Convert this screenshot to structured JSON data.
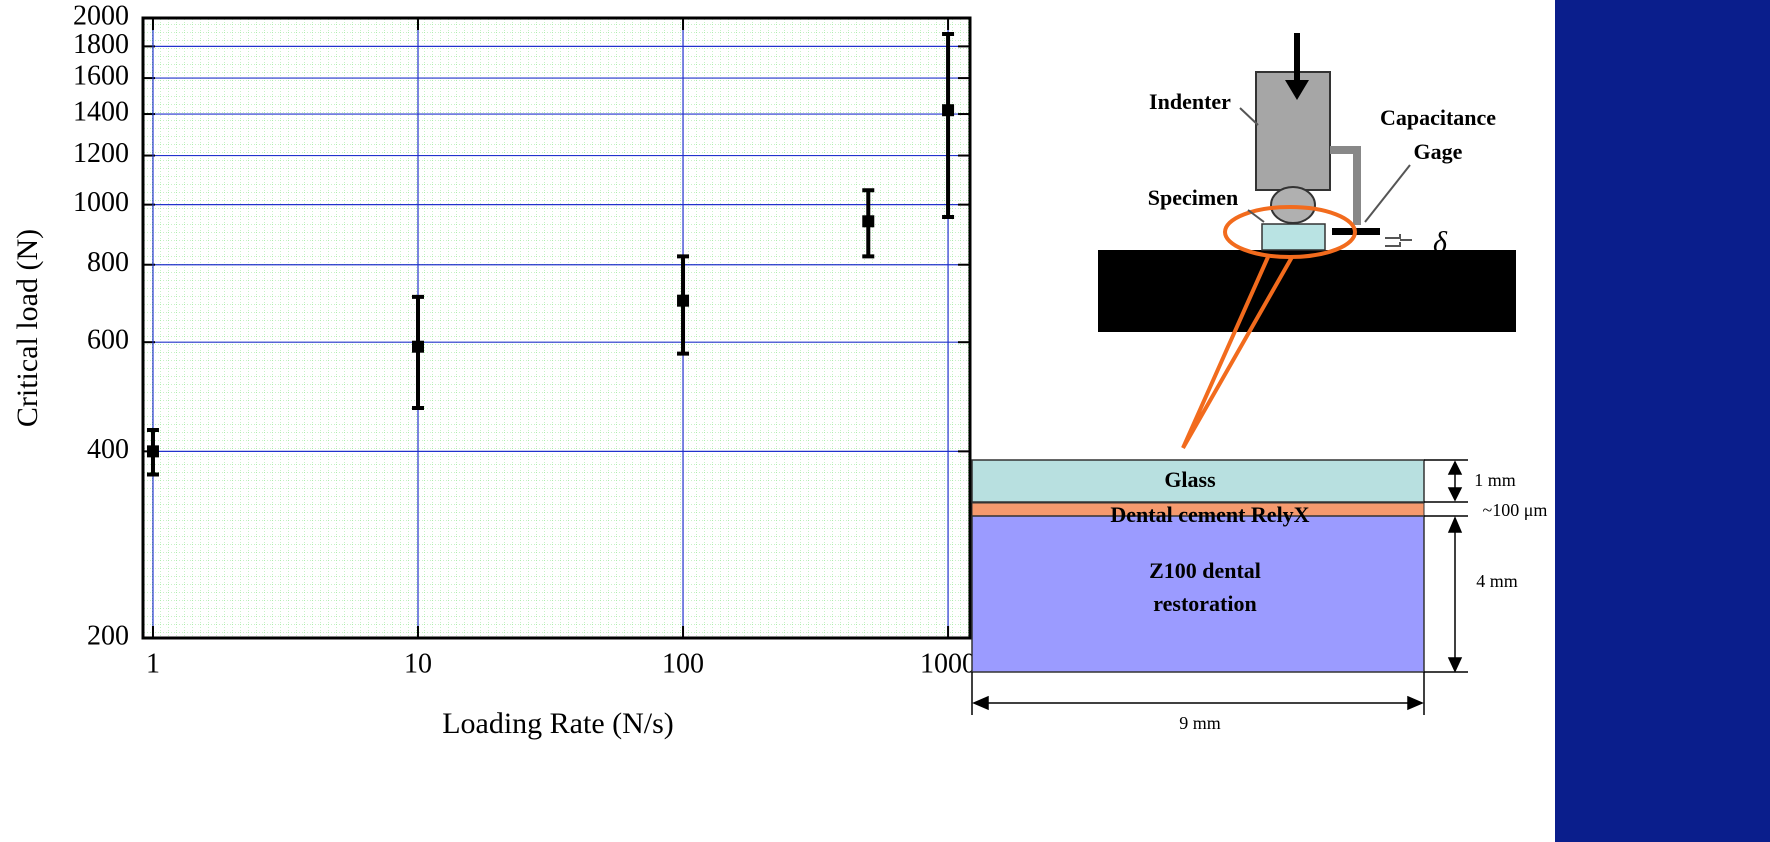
{
  "chart_data": {
    "type": "scatter",
    "xlabel": "Loading Rate (N/s)",
    "ylabel": "Critical load (N)",
    "x": [
      1,
      10,
      100,
      500,
      1000
    ],
    "values": [
      400,
      590,
      700,
      940,
      1420
    ],
    "errors": [
      33,
      120,
      125,
      115,
      465
    ],
    "color": "#000000",
    "xscale": "log",
    "yscale": "log",
    "xlim": [
      0.917,
      1210
    ],
    "ylim": [
      200,
      2000
    ],
    "xticks": [
      1,
      10,
      100,
      1000
    ],
    "yticks": [
      200,
      400,
      600,
      800,
      1000,
      1200,
      1400,
      1600,
      1800,
      2000
    ],
    "grid": true,
    "grid_color": "#2233cc",
    "minor_grid_color": "#7fe07f"
  },
  "diagram": {
    "indenter": "Indenter",
    "capacitance_gage": [
      "Capacitance",
      "Gage"
    ],
    "specimen": "Specimen",
    "delta": "δ",
    "glass": "Glass",
    "cement": "Dental cement RelyX",
    "z100": [
      "Z100 dental",
      "restoration"
    ],
    "dim_glass": "1 mm",
    "dim_cement": "~100 μm",
    "dim_z100": "4 mm",
    "dim_width": "9 mm"
  }
}
